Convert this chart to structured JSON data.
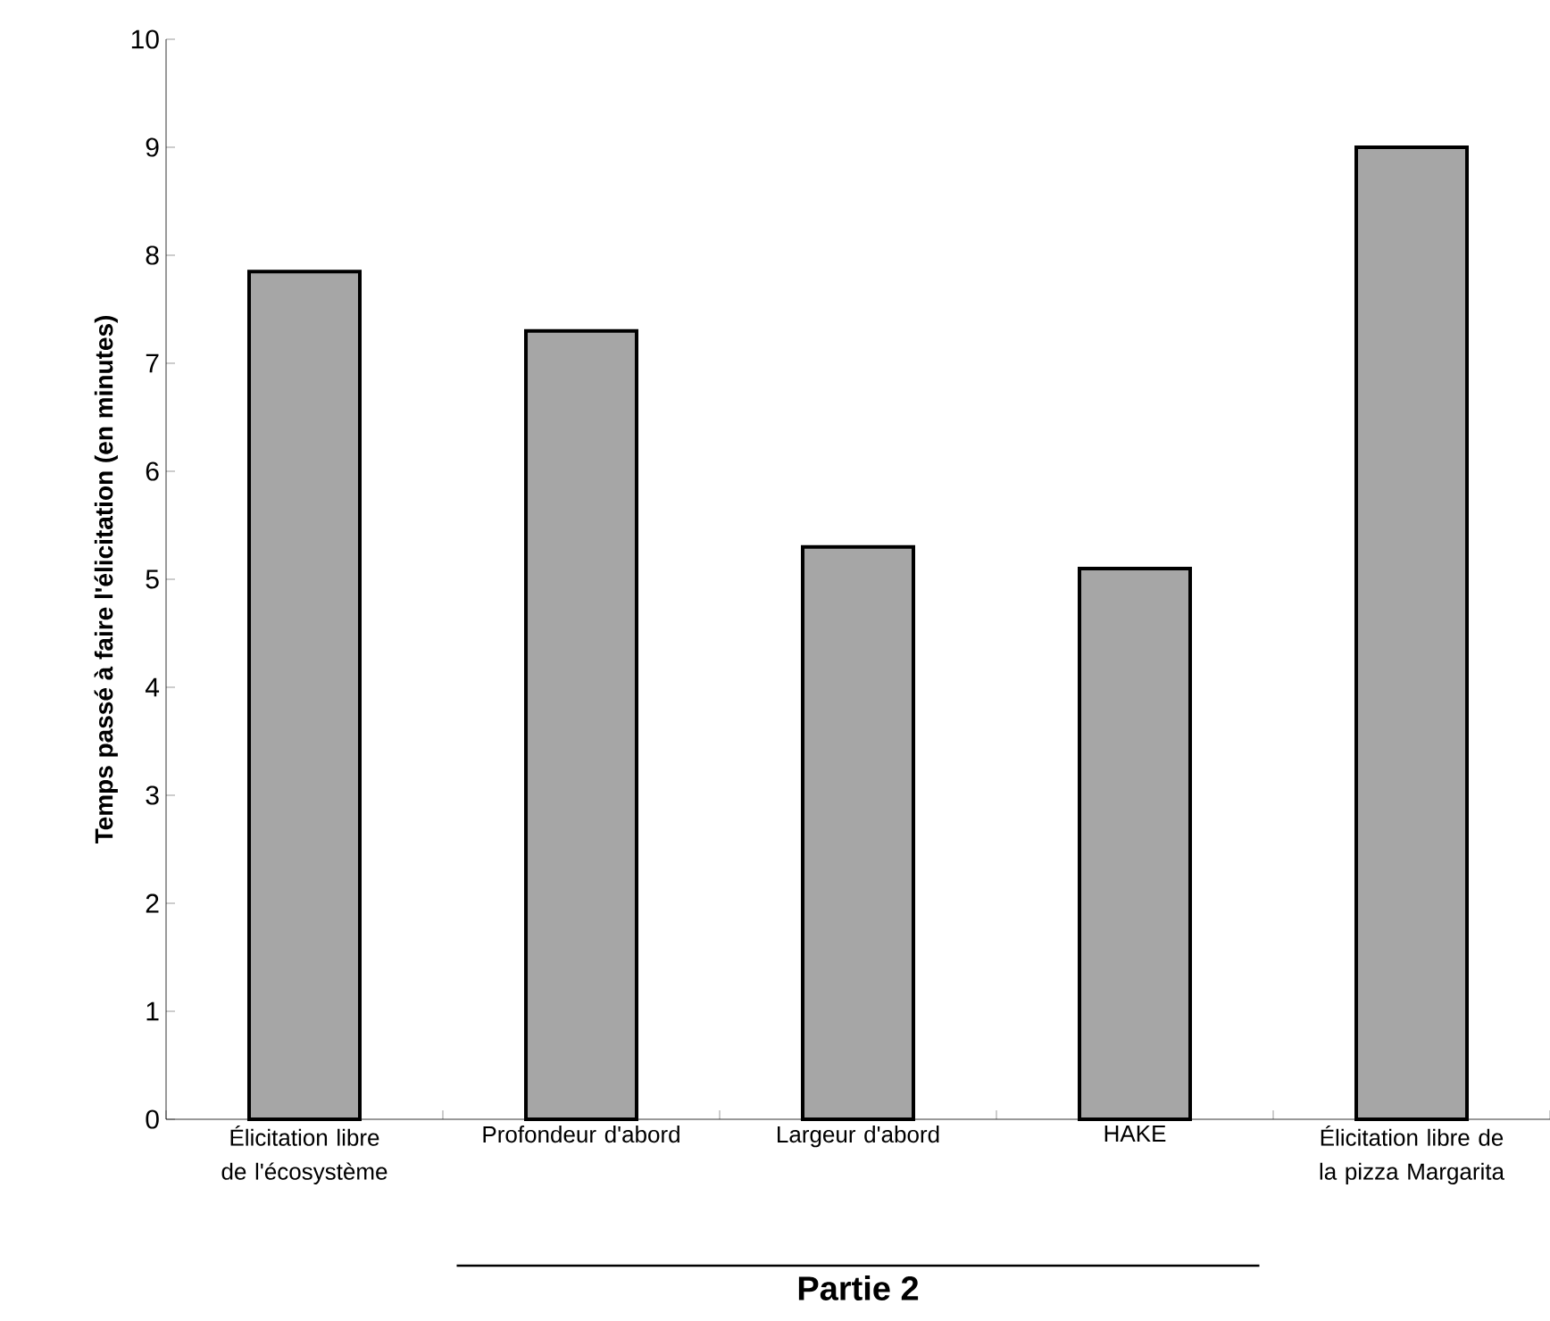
{
  "chart_data": {
    "type": "bar",
    "ylabel": "Temps passé à faire l'élicitation (en minutes)",
    "categories": [
      "Élicitation libre de l'écosystème",
      "Profondeur d'abord",
      "Largeur d'abord",
      "HAKE",
      "Élicitation libre de la pizza Margarita"
    ],
    "values": [
      7.85,
      7.3,
      5.3,
      5.1,
      9.0
    ],
    "color": "#a6a6a6",
    "ylim": [
      0,
      10
    ],
    "yticks": [
      0,
      1,
      2,
      3,
      4,
      5,
      6,
      7,
      8,
      9,
      10
    ],
    "grid": false,
    "annotations": [
      "Partie 2"
    ]
  }
}
